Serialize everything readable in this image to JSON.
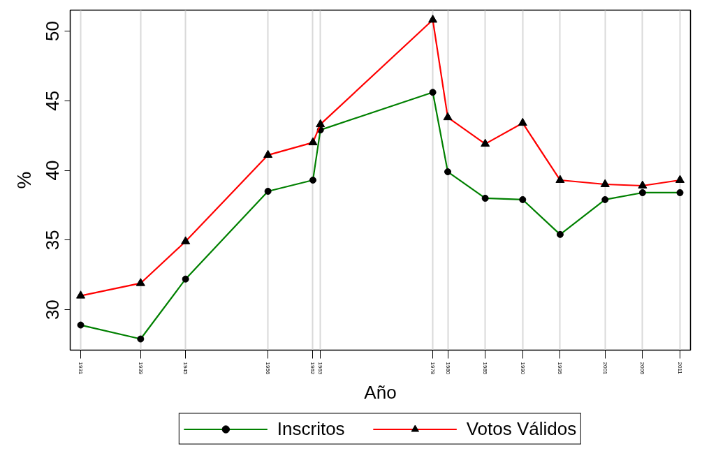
{
  "chart_data": {
    "type": "line",
    "xlabel": "Año",
    "ylabel": "%",
    "x": [
      1931,
      1939,
      1945,
      1956,
      1962,
      1963,
      1978,
      1980,
      1985,
      1990,
      1995,
      2001,
      2006,
      2011
    ],
    "series": [
      {
        "name": "Inscritos",
        "color": "#008000",
        "marker": "circle",
        "values": [
          28.9,
          27.9,
          32.2,
          38.5,
          39.3,
          42.9,
          45.6,
          39.9,
          38.0,
          37.9,
          35.4,
          37.9,
          38.4,
          38.4
        ]
      },
      {
        "name": "Votos Válidos",
        "color": "#ff0000",
        "marker": "triangle",
        "values": [
          31.0,
          31.9,
          34.9,
          41.1,
          42.0,
          43.3,
          50.8,
          43.8,
          41.9,
          43.4,
          39.3,
          39.0,
          38.9,
          39.3
        ]
      }
    ],
    "xlim": [
      1929.6,
      2012.4
    ],
    "ylim": [
      27.1,
      51.5
    ],
    "xticks": [
      1931,
      1939,
      1945,
      1956,
      1962,
      1963,
      1978,
      1980,
      1985,
      1990,
      1995,
      2001,
      2006,
      2011
    ],
    "yticks": [
      30,
      35,
      40,
      45,
      50
    ],
    "grid": "x",
    "legend": "bottom",
    "line_style": "solid"
  }
}
